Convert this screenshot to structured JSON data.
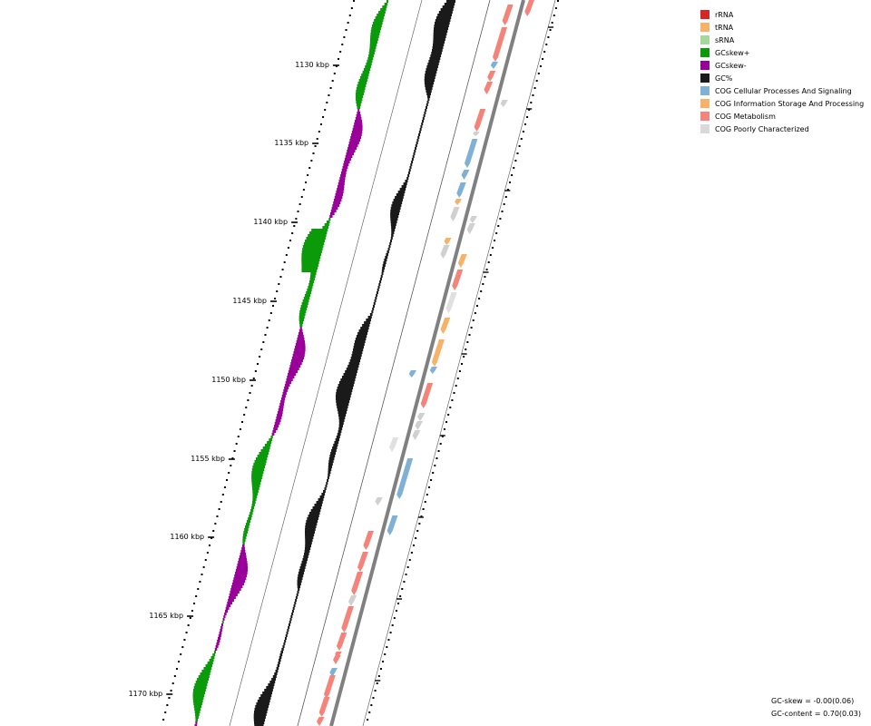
{
  "legend": [
    {
      "label": "rRNA",
      "color": "#d62728"
    },
    {
      "label": "tRNA",
      "color": "#f7b267"
    },
    {
      "label": "sRNA",
      "color": "#a6d89a"
    },
    {
      "label": "GCskew+",
      "color": "#0a9a0a"
    },
    {
      "label": "GCskew-",
      "color": "#990099"
    },
    {
      "label": "GC%",
      "color": "#1a1a1a"
    },
    {
      "label": "COG Cellular Processes And Signaling",
      "color": "#7fb0d6"
    },
    {
      "label": "COG Information Storage And Processing",
      "color": "#f7b267"
    },
    {
      "label": "COG Metabolism",
      "color": "#f4837a"
    },
    {
      "label": "COG Poorly Characterized",
      "color": "#d9d9d9"
    }
  ],
  "ticks": [
    {
      "label": "1130 kbp"
    },
    {
      "label": "1135 kbp"
    },
    {
      "label": "1140 kbp"
    },
    {
      "label": "1145 kbp"
    },
    {
      "label": "1150 kbp"
    },
    {
      "label": "1155 kbp"
    },
    {
      "label": "1160 kbp"
    },
    {
      "label": "1165 kbp"
    },
    {
      "label": "1170 kbp"
    }
  ],
  "stats": {
    "gc_skew": "GC-skew = -0.00(0.06)",
    "gc_content": "GC-content = 0.70(0.03)"
  }
}
